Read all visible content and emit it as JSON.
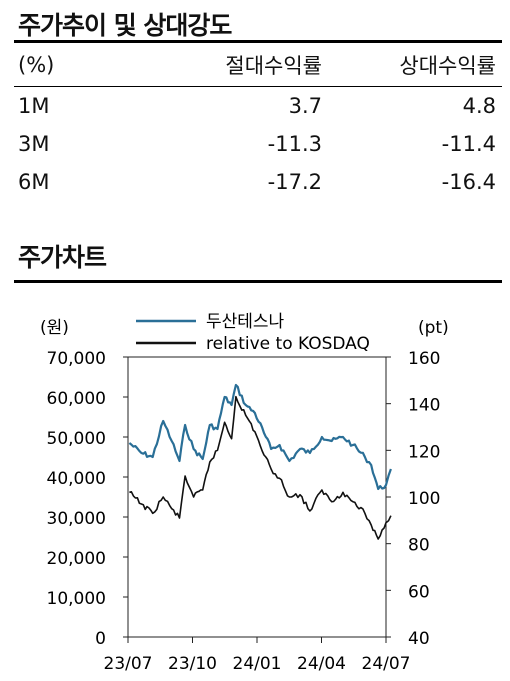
{
  "section1": {
    "title": "주가추이 및 상대강도",
    "columns": [
      "(%)",
      "절대수익률",
      "상대수익률"
    ],
    "rows": [
      {
        "period": "1M",
        "absolute": "3.7",
        "relative": "4.8"
      },
      {
        "period": "3M",
        "absolute": "-11.3",
        "relative": "-11.4"
      },
      {
        "period": "6M",
        "absolute": "-17.2",
        "relative": "-16.4"
      }
    ]
  },
  "section2": {
    "title": "주가차트"
  },
  "chart_data": {
    "type": "line",
    "left_unit": "(원)",
    "right_unit": "(pt)",
    "left_ylim": [
      0,
      70000
    ],
    "right_ylim": [
      40,
      160
    ],
    "left_ticks": [
      "70,000",
      "60,000",
      "50,000",
      "40,000",
      "30,000",
      "20,000",
      "10,000",
      "0"
    ],
    "right_ticks": [
      "160",
      "140",
      "120",
      "100",
      "80",
      "60",
      "40"
    ],
    "x_ticks": [
      "23/07",
      "23/10",
      "24/01",
      "24/04",
      "24/07"
    ],
    "x_range": [
      "2023-07",
      "2024-07"
    ],
    "series": [
      {
        "name": "두산테스나",
        "axis": "left",
        "color": "#2a6f97",
        "x": [
          "2023-07-03",
          "2023-07-20",
          "2023-08-05",
          "2023-08-20",
          "2023-09-01",
          "2023-09-12",
          "2023-09-20",
          "2023-10-02",
          "2023-10-15",
          "2023-10-25",
          "2023-11-05",
          "2023-11-15",
          "2023-11-25",
          "2023-12-01",
          "2023-12-15",
          "2023-12-28",
          "2024-01-10",
          "2024-01-20",
          "2024-02-01",
          "2024-02-15",
          "2024-03-01",
          "2024-03-15",
          "2024-04-01",
          "2024-04-15",
          "2024-05-01",
          "2024-05-15",
          "2024-06-01",
          "2024-06-10",
          "2024-06-20",
          "2024-07-01",
          "2024-07-08"
        ],
        "values": [
          48500,
          46000,
          45000,
          54000,
          49000,
          44000,
          53000,
          47000,
          44500,
          53000,
          52000,
          60000,
          58000,
          63000,
          58000,
          56000,
          51000,
          47000,
          48000,
          44000,
          47000,
          46000,
          50000,
          49000,
          50000,
          48000,
          45000,
          43000,
          37000,
          38000,
          42000
        ]
      },
      {
        "name": "relative to KOSDAQ",
        "axis": "right",
        "color": "#111111",
        "x": [
          "2023-07-03",
          "2023-07-20",
          "2023-08-05",
          "2023-08-20",
          "2023-09-01",
          "2023-09-12",
          "2023-09-20",
          "2023-10-02",
          "2023-10-15",
          "2023-10-25",
          "2023-11-05",
          "2023-11-15",
          "2023-11-25",
          "2023-12-01",
          "2023-12-15",
          "2023-12-28",
          "2024-01-10",
          "2024-01-20",
          "2024-02-01",
          "2024-02-15",
          "2024-03-01",
          "2024-03-15",
          "2024-04-01",
          "2024-04-15",
          "2024-05-01",
          "2024-05-15",
          "2024-06-01",
          "2024-06-10",
          "2024-06-20",
          "2024-07-01",
          "2024-07-08"
        ],
        "values": [
          102,
          97,
          93,
          100,
          95,
          91,
          109,
          100,
          103,
          115,
          120,
          132,
          125,
          143,
          135,
          128,
          118,
          112,
          108,
          100,
          101,
          94,
          103,
          98,
          102,
          98,
          93,
          88,
          82,
          89,
          92
        ]
      }
    ]
  }
}
